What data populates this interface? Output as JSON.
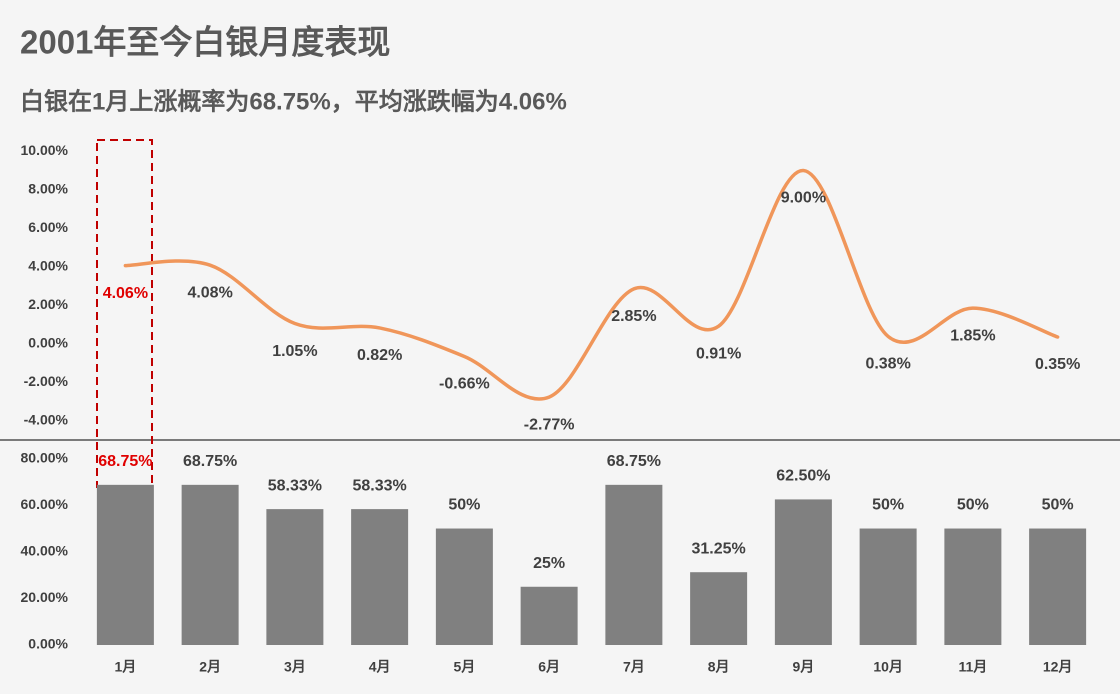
{
  "title": "2001年至今白银月度表现",
  "subtitle": "白银在1月上涨概率为68.75%，平均涨跌幅为4.06%",
  "chart_data": [
    {
      "type": "line",
      "color": "#f0965a",
      "values": [
        4.06,
        4.08,
        1.05,
        0.82,
        -0.66,
        -2.77,
        2.85,
        0.91,
        9.0,
        0.38,
        1.85,
        0.35
      ],
      "value_labels": [
        "4.06%",
        "4.08%",
        "1.05%",
        "0.82%",
        "-0.66%",
        "-2.77%",
        "2.85%",
        "0.91%",
        "9.00%",
        "0.38%",
        "1.85%",
        "0.35%"
      ],
      "ylim": [
        -5,
        11
      ],
      "yticks": [
        {
          "value": -4,
          "label": "-4.00%"
        },
        {
          "value": -2,
          "label": "-2.00%"
        },
        {
          "value": 0,
          "label": "0.00%"
        },
        {
          "value": 2,
          "label": "2.00%"
        },
        {
          "value": 4,
          "label": "4.00%"
        },
        {
          "value": 6,
          "label": "6.00%"
        },
        {
          "value": 8,
          "label": "8.00%"
        },
        {
          "value": 10,
          "label": "10.00%"
        }
      ]
    },
    {
      "type": "bar",
      "color": "#808080",
      "categories": [
        "1月",
        "2月",
        "3月",
        "4月",
        "5月",
        "6月",
        "7月",
        "8月",
        "9月",
        "10月",
        "11月",
        "12月"
      ],
      "values": [
        68.75,
        68.75,
        58.33,
        58.33,
        50,
        25,
        68.75,
        31.25,
        62.5,
        50,
        50,
        50
      ],
      "value_labels": [
        "68.75%",
        "68.75%",
        "58.33%",
        "58.33%",
        "50%",
        "25%",
        "68.75%",
        "31.25%",
        "62.50%",
        "50%",
        "50%",
        "50%"
      ],
      "ylim": [
        0,
        88
      ],
      "yticks": [
        {
          "value": 0,
          "label": "0.00%"
        },
        {
          "value": 20,
          "label": "20.00%"
        },
        {
          "value": 40,
          "label": "40.00%"
        },
        {
          "value": 60,
          "label": "60.00%"
        },
        {
          "value": 80,
          "label": "80.00%"
        }
      ]
    }
  ]
}
